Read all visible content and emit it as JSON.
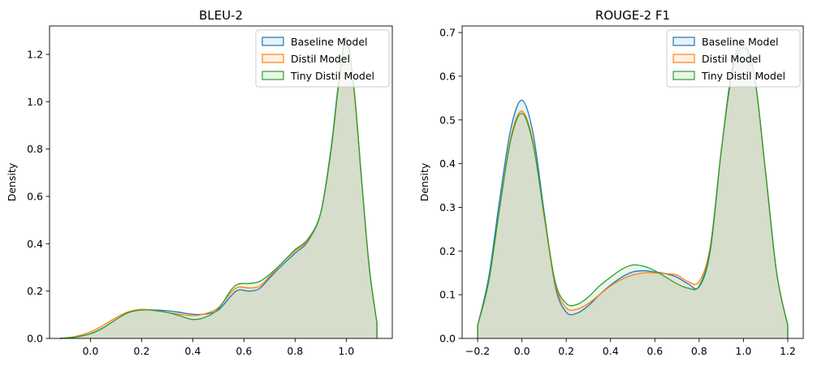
{
  "chart_data": [
    {
      "type": "area",
      "title": "BLEU-2",
      "xlabel": "",
      "ylabel": "Density",
      "xlim": [
        -0.16,
        1.18
      ],
      "ylim": [
        0,
        1.32
      ],
      "xticks": [
        0.0,
        0.2,
        0.4,
        0.6,
        0.8,
        1.0
      ],
      "xtick_labels": [
        "0.0",
        "0.2",
        "0.4",
        "0.6",
        "0.8",
        "1.0"
      ],
      "yticks": [
        0.0,
        0.2,
        0.4,
        0.6,
        0.8,
        1.0,
        1.2
      ],
      "ytick_labels": [
        "0.0",
        "0.2",
        "0.4",
        "0.6",
        "0.8",
        "1.0",
        "1.2"
      ],
      "legend_position": "top-right",
      "series": [
        {
          "name": "Baseline Model",
          "color": "#1f77b4",
          "x": [
            -0.12,
            -0.06,
            0.0,
            0.05,
            0.1,
            0.15,
            0.2,
            0.25,
            0.3,
            0.35,
            0.4,
            0.45,
            0.5,
            0.55,
            0.58,
            0.62,
            0.66,
            0.7,
            0.75,
            0.8,
            0.85,
            0.9,
            0.94,
            0.97,
            1.0,
            1.03,
            1.06,
            1.09,
            1.12
          ],
          "y": [
            0.0,
            0.005,
            0.02,
            0.045,
            0.08,
            0.11,
            0.12,
            0.12,
            0.117,
            0.11,
            0.102,
            0.103,
            0.12,
            0.18,
            0.205,
            0.2,
            0.21,
            0.255,
            0.31,
            0.36,
            0.41,
            0.53,
            0.8,
            1.08,
            1.27,
            1.06,
            0.67,
            0.3,
            0.065
          ]
        },
        {
          "name": "Distil Model",
          "color": "#ff7f0e",
          "x": [
            -0.12,
            -0.06,
            0.0,
            0.05,
            0.1,
            0.15,
            0.2,
            0.25,
            0.3,
            0.35,
            0.4,
            0.45,
            0.5,
            0.55,
            0.58,
            0.62,
            0.66,
            0.7,
            0.75,
            0.8,
            0.85,
            0.9,
            0.94,
            0.97,
            1.0,
            1.03,
            1.06,
            1.09,
            1.12
          ],
          "y": [
            0.0,
            0.008,
            0.028,
            0.055,
            0.088,
            0.113,
            0.123,
            0.118,
            0.11,
            0.102,
            0.096,
            0.105,
            0.13,
            0.195,
            0.217,
            0.213,
            0.22,
            0.262,
            0.32,
            0.37,
            0.415,
            0.53,
            0.79,
            1.07,
            1.26,
            1.05,
            0.67,
            0.3,
            0.065
          ]
        },
        {
          "name": "Tiny Distil Model",
          "color": "#2ca02c",
          "x": [
            -0.12,
            -0.06,
            0.0,
            0.05,
            0.1,
            0.15,
            0.2,
            0.25,
            0.3,
            0.35,
            0.4,
            0.45,
            0.5,
            0.55,
            0.58,
            0.62,
            0.66,
            0.7,
            0.75,
            0.8,
            0.85,
            0.9,
            0.94,
            0.97,
            1.0,
            1.03,
            1.06,
            1.09,
            1.12
          ],
          "y": [
            0.0,
            0.005,
            0.02,
            0.045,
            0.08,
            0.11,
            0.12,
            0.118,
            0.11,
            0.095,
            0.08,
            0.09,
            0.125,
            0.205,
            0.23,
            0.232,
            0.24,
            0.27,
            0.32,
            0.375,
            0.42,
            0.53,
            0.79,
            1.07,
            1.26,
            1.06,
            0.67,
            0.3,
            0.065
          ]
        }
      ]
    },
    {
      "type": "area",
      "title": "ROUGE-2 F1",
      "xlabel": "",
      "ylabel": "Density",
      "xlim": [
        -0.27,
        1.27
      ],
      "ylim": [
        0,
        0.715
      ],
      "xticks": [
        -0.2,
        0.0,
        0.2,
        0.4,
        0.6,
        0.8,
        1.0,
        1.2
      ],
      "xtick_labels": [
        "−0.2",
        "0.0",
        "0.2",
        "0.4",
        "0.6",
        "0.8",
        "1.0",
        "1.2"
      ],
      "yticks": [
        0.0,
        0.1,
        0.2,
        0.3,
        0.4,
        0.5,
        0.6,
        0.7
      ],
      "ytick_labels": [
        "0.0",
        "0.1",
        "0.2",
        "0.3",
        "0.4",
        "0.5",
        "0.6",
        "0.7"
      ],
      "legend_position": "top-right",
      "series": [
        {
          "name": "Baseline Model",
          "color": "#1f77b4",
          "x": [
            -0.2,
            -0.15,
            -0.1,
            -0.05,
            0.0,
            0.05,
            0.1,
            0.15,
            0.2,
            0.25,
            0.3,
            0.35,
            0.4,
            0.45,
            0.5,
            0.55,
            0.6,
            0.65,
            0.7,
            0.75,
            0.8,
            0.85,
            0.9,
            0.95,
            1.0,
            1.05,
            1.1,
            1.15,
            1.2
          ],
          "y": [
            0.03,
            0.14,
            0.32,
            0.48,
            0.545,
            0.47,
            0.29,
            0.12,
            0.06,
            0.058,
            0.075,
            0.1,
            0.122,
            0.14,
            0.152,
            0.155,
            0.152,
            0.148,
            0.14,
            0.125,
            0.118,
            0.2,
            0.43,
            0.62,
            0.675,
            0.6,
            0.38,
            0.15,
            0.03
          ]
        },
        {
          "name": "Distil Model",
          "color": "#ff7f0e",
          "x": [
            -0.2,
            -0.15,
            -0.1,
            -0.05,
            0.0,
            0.05,
            0.1,
            0.15,
            0.2,
            0.25,
            0.3,
            0.35,
            0.4,
            0.45,
            0.5,
            0.55,
            0.6,
            0.65,
            0.7,
            0.75,
            0.8,
            0.85,
            0.9,
            0.95,
            1.0,
            1.05,
            1.1,
            1.15,
            1.2
          ],
          "y": [
            0.03,
            0.13,
            0.3,
            0.46,
            0.52,
            0.45,
            0.28,
            0.125,
            0.07,
            0.067,
            0.08,
            0.1,
            0.12,
            0.135,
            0.145,
            0.15,
            0.15,
            0.148,
            0.145,
            0.13,
            0.13,
            0.21,
            0.43,
            0.61,
            0.665,
            0.6,
            0.38,
            0.15,
            0.03
          ]
        },
        {
          "name": "Tiny Distil Model",
          "color": "#2ca02c",
          "x": [
            -0.2,
            -0.15,
            -0.1,
            -0.05,
            0.0,
            0.05,
            0.1,
            0.15,
            0.2,
            0.25,
            0.3,
            0.35,
            0.4,
            0.45,
            0.5,
            0.55,
            0.6,
            0.65,
            0.7,
            0.75,
            0.8,
            0.85,
            0.9,
            0.95,
            1.0,
            1.05,
            1.1,
            1.15,
            1.2
          ],
          "y": [
            0.03,
            0.13,
            0.3,
            0.455,
            0.515,
            0.445,
            0.285,
            0.13,
            0.08,
            0.078,
            0.095,
            0.12,
            0.14,
            0.158,
            0.168,
            0.165,
            0.155,
            0.14,
            0.125,
            0.115,
            0.12,
            0.205,
            0.43,
            0.61,
            0.665,
            0.6,
            0.38,
            0.15,
            0.03
          ]
        }
      ]
    }
  ]
}
